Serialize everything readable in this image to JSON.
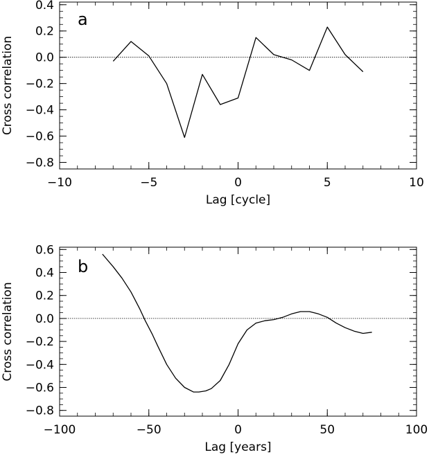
{
  "chart_data": [
    {
      "type": "line",
      "panel_label": "a",
      "xlabel": "Lag [cycle]",
      "ylabel": "Cross correlation",
      "xlim": [
        -10,
        10
      ],
      "ylim": [
        -0.85,
        0.42
      ],
      "xticks": [
        -10,
        -5,
        0,
        5,
        10
      ],
      "xtick_labels": [
        "−10",
        "−5",
        "0",
        "5",
        "10"
      ],
      "yticks": [
        -0.8,
        -0.6,
        -0.4,
        -0.2,
        0.0,
        0.2,
        0.4
      ],
      "ytick_labels": [
        "−0.8",
        "−0.6",
        "−0.4",
        "−0.2",
        "0.0",
        "0.2",
        "0.4"
      ],
      "reference_line": 0.0,
      "series": [
        {
          "x": [
            -7,
            -6,
            -5,
            -4,
            -3,
            -2,
            -1,
            0,
            1,
            2,
            3,
            4,
            5,
            6,
            7
          ],
          "y": [
            -0.03,
            0.12,
            0.01,
            -0.2,
            -0.61,
            -0.13,
            -0.36,
            -0.31,
            0.15,
            0.02,
            -0.02,
            -0.1,
            0.23,
            0.02,
            -0.11
          ]
        }
      ]
    },
    {
      "type": "line",
      "panel_label": "b",
      "xlabel": "Lag [years]",
      "ylabel": "Cross correlation",
      "xlim": [
        -100,
        100
      ],
      "ylim": [
        -0.85,
        0.62
      ],
      "xticks": [
        -100,
        -50,
        0,
        50,
        100
      ],
      "xtick_labels": [
        "−100",
        "−50",
        "0",
        "50",
        "100"
      ],
      "yticks": [
        -0.8,
        -0.6,
        -0.4,
        -0.2,
        0.0,
        0.2,
        0.4,
        0.6
      ],
      "ytick_labels": [
        "−0.8",
        "−0.6",
        "−0.4",
        "−0.2",
        "0.0",
        "0.2",
        "0.4",
        "0.6"
      ],
      "reference_line": 0.0,
      "series": [
        {
          "x": [
            -76,
            -70,
            -65,
            -60,
            -55,
            -52,
            -48,
            -45,
            -40,
            -35,
            -30,
            -25,
            -22,
            -18,
            -15,
            -10,
            -5,
            0,
            5,
            10,
            15,
            20,
            25,
            30,
            35,
            40,
            45,
            50,
            55,
            60,
            65,
            70,
            75
          ],
          "y": [
            0.56,
            0.45,
            0.35,
            0.23,
            0.08,
            -0.02,
            -0.14,
            -0.24,
            -0.4,
            -0.52,
            -0.6,
            -0.64,
            -0.64,
            -0.63,
            -0.61,
            -0.54,
            -0.4,
            -0.22,
            -0.1,
            -0.04,
            -0.02,
            -0.01,
            0.01,
            0.04,
            0.06,
            0.06,
            0.04,
            0.01,
            -0.04,
            -0.08,
            -0.11,
            -0.13,
            -0.12
          ]
        }
      ]
    }
  ]
}
